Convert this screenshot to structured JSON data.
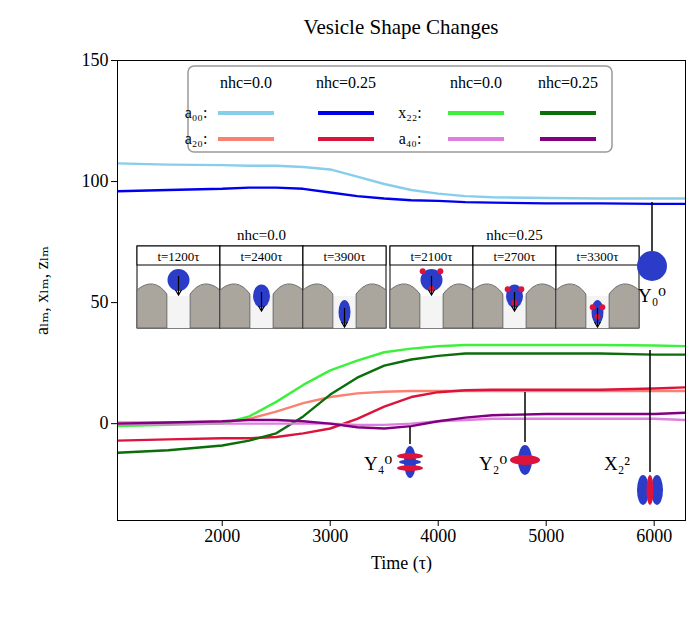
{
  "chart_data": {
    "type": "line",
    "title": "Vesicle Shape Changes",
    "x_label": "Time (τ)",
    "y_label": "aₗₘ, xₗₘ, zₗₘ",
    "x": [
      1030,
      1500,
      2000,
      2250,
      2500,
      2750,
      3000,
      3250,
      3500,
      3750,
      4000,
      4250,
      4500,
      5000,
      5500,
      6000,
      6290
    ],
    "xlim": [
      1030,
      6290
    ],
    "xticks": [
      2000,
      3000,
      4000,
      5000,
      6000
    ],
    "ylim": [
      -40,
      150
    ],
    "yticks": [
      0,
      50,
      100,
      150
    ],
    "grid": false,
    "legend": "upper center",
    "series": [
      {
        "name": "a₀₀:",
        "column": "nhc=0.0",
        "color": "#87ceeb",
        "values": [
          107.5,
          107,
          106.8,
          106.5,
          106.5,
          106,
          105,
          102,
          99,
          96.5,
          95,
          94,
          93.5,
          93.2,
          93,
          93,
          93
        ]
      },
      {
        "name": "a₀₀:",
        "column": "nhc=0.25",
        "color": "#0000ee",
        "values": [
          96,
          96.5,
          97,
          97.5,
          97.5,
          97,
          95.5,
          94,
          93,
          92.3,
          92,
          91.5,
          91.3,
          91,
          91,
          90.8,
          90.8
        ]
      },
      {
        "name": "a₂₀:",
        "column": "nhc=0.0",
        "color": "#fa8072",
        "values": [
          0.5,
          0.5,
          0.5,
          2,
          5,
          8.5,
          11,
          12.5,
          13.2,
          13.5,
          13.5,
          13.5,
          13.5,
          13.5,
          13.5,
          13.5,
          13.5
        ]
      },
      {
        "name": "a₂₀:",
        "column": "nhc=0.25",
        "color": "#dc143c",
        "values": [
          -7,
          -6.5,
          -6,
          -6,
          -5.5,
          -4,
          -2,
          2,
          7,
          11,
          13,
          13.8,
          14,
          14,
          14,
          14.5,
          15
        ]
      },
      {
        "name": "x₂₂:",
        "column": "nhc=0.0",
        "color": "#3cf03c",
        "values": [
          -1,
          -0.5,
          0,
          3,
          9,
          16,
          22,
          26,
          29.5,
          31,
          32,
          32.5,
          32.5,
          32.5,
          32.5,
          32.3,
          32
        ]
      },
      {
        "name": "x₂₂:",
        "column": "nhc=0.25",
        "color": "#0a6e0a",
        "values": [
          -12,
          -11,
          -9,
          -7,
          -4,
          3,
          12,
          19,
          24,
          26.5,
          28,
          29,
          29,
          29,
          29,
          28.5,
          28.5
        ]
      },
      {
        "name": "a₄₀:",
        "column": "nhc=0.0",
        "color": "#e07ee0",
        "values": [
          0,
          0,
          0,
          0,
          0,
          0,
          0,
          -0.5,
          -0.5,
          0,
          1,
          1.5,
          2,
          2,
          2,
          2,
          1.5
        ]
      },
      {
        "name": "a₄₀:",
        "column": "nhc=0.25",
        "color": "#800080",
        "values": [
          0,
          0.5,
          1,
          1.5,
          1.5,
          1,
          0,
          -1.5,
          -2,
          -1,
          1,
          2.5,
          3.5,
          4,
          4,
          4,
          4.5
        ]
      }
    ],
    "insets": [
      {
        "title": "nhc=0.0",
        "frames": [
          "t=1200τ",
          "t=2400τ",
          "t=3900τ"
        ]
      },
      {
        "title": "nhc=0.25",
        "frames": [
          "t=2100τ",
          "t=2700τ",
          "t=3300τ"
        ]
      }
    ],
    "annotations": [
      "Y₀⁰",
      "Y₄⁰",
      "Y₂⁰",
      "X₂²"
    ]
  }
}
